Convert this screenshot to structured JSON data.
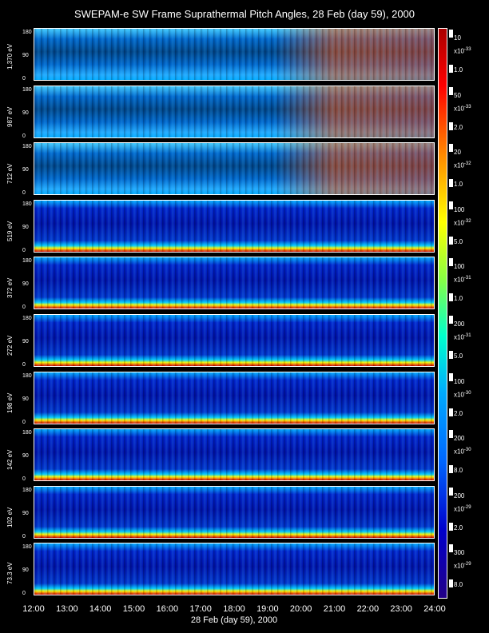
{
  "title": "SWEPAM-e SW Frame Suprathermal Pitch Angles, 28 Feb (day  59), 2000",
  "xlabel": "28 Feb (day  59), 2000",
  "xticks": [
    "12:00",
    "13:00",
    "14:00",
    "15:00",
    "16:00",
    "17:00",
    "18:00",
    "19:00",
    "20:00",
    "21:00",
    "22:00",
    "23:00",
    "24:00"
  ],
  "yticks": [
    "0",
    "90",
    "180"
  ],
  "panels": [
    {
      "label": "1,370 eV",
      "scale_max": "10",
      "scale_unit": "x10",
      "scale_exp": "-33",
      "scale_min": "1.0"
    },
    {
      "label": "987 eV",
      "scale_max": "50",
      "scale_unit": "x10",
      "scale_exp": "-33",
      "scale_min": "2.0"
    },
    {
      "label": "712 eV",
      "scale_max": "20",
      "scale_unit": "x10",
      "scale_exp": "-32",
      "scale_min": "1.0"
    },
    {
      "label": "519 eV",
      "scale_max": "100",
      "scale_unit": "x10",
      "scale_exp": "-32",
      "scale_min": "5.0"
    },
    {
      "label": "372 eV",
      "scale_max": "100",
      "scale_unit": "x10",
      "scale_exp": "-31",
      "scale_min": "1.0"
    },
    {
      "label": "272 eV",
      "scale_max": "200",
      "scale_unit": "x10",
      "scale_exp": "-31",
      "scale_min": "5.0"
    },
    {
      "label": "198 eV",
      "scale_max": "100",
      "scale_unit": "x10",
      "scale_exp": "-30",
      "scale_min": "2.0"
    },
    {
      "label": "142 eV",
      "scale_max": "200",
      "scale_unit": "x10",
      "scale_exp": "-30",
      "scale_min": "8.0"
    },
    {
      "label": "102 eV",
      "scale_max": "200",
      "scale_unit": "x10",
      "scale_exp": "-29",
      "scale_min": "2.0"
    },
    {
      "label": "73.3 eV",
      "scale_max": "300",
      "scale_unit": "x10",
      "scale_exp": "-29",
      "scale_min": "8.0"
    }
  ]
}
